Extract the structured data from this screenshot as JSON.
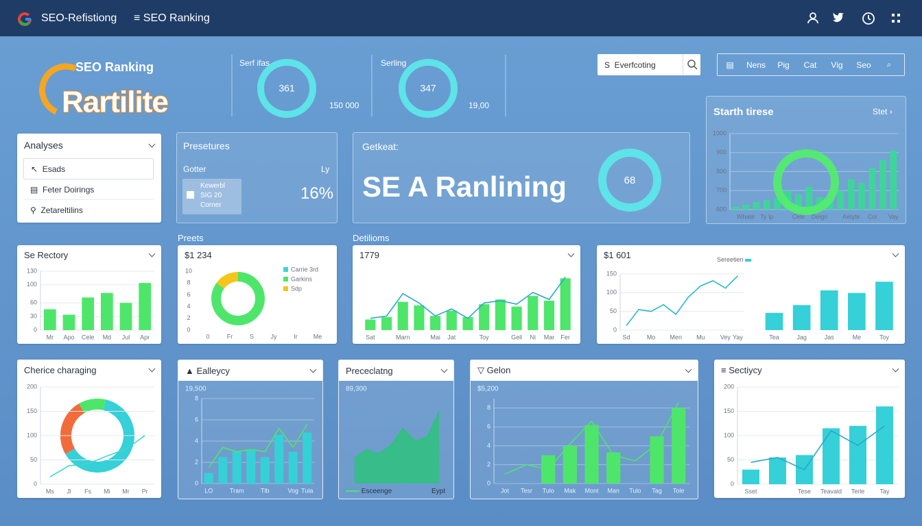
{
  "header": {
    "brand": "SEO-Refistiong",
    "nav": "SEO Ranking"
  },
  "logo": {
    "top": "SEO Ranking",
    "main": "Rartilite"
  },
  "gauges": [
    {
      "label": "Serf ifas",
      "value": 361,
      "side": "150 000"
    },
    {
      "label": "Serling",
      "value": 347,
      "side": "19,00"
    }
  ],
  "search": {
    "placeholder": "Everfcoting"
  },
  "toolbar": [
    "Nens",
    "Pig",
    "Cat",
    "Vig",
    "Seo"
  ],
  "sidebar": {
    "title": "Analyses",
    "items": [
      "Esads",
      "Feter Doirings",
      "Zetareltilins"
    ]
  },
  "presetures": {
    "title": "Presetures",
    "label": "Gotter",
    "right": "Ly",
    "box": [
      "Kewerbl",
      "SIG 20",
      "Corner"
    ],
    "value": "16%"
  },
  "hero": {
    "label": "Getkeat:",
    "title": "SE A Ranlining",
    "gauge": 68
  },
  "trend": {
    "title": "Starth tirese",
    "link": "Stet",
    "type": "bar",
    "ylim": [
      600,
      1000
    ],
    "yticks": [
      600,
      700,
      800,
      900,
      1000
    ],
    "categories": [
      null,
      "Whate",
      null,
      "Ty Ip",
      null,
      null,
      "Cele",
      null,
      "Deign",
      null,
      null,
      "Aetyte",
      null,
      "Col",
      null,
      "Vay"
    ],
    "series": [
      {
        "kind": "bar",
        "color": "#3fd59a",
        "values": [
          615,
          625,
          640,
          650,
          660,
          700,
          680,
          720,
          665,
          650,
          700,
          760,
          740,
          820,
          860,
          910
        ]
      }
    ]
  },
  "panels": [
    {
      "title": "Se Rectory",
      "type": "bar",
      "ylim": [
        0,
        130
      ],
      "yticks": [
        0,
        30,
        60,
        100,
        130
      ],
      "categories": [
        "Mr",
        "Apo",
        "Cele",
        "Md",
        "Jul",
        "Apr"
      ],
      "series": [
        {
          "kind": "bar",
          "color": "#4ee66a",
          "values": [
            46,
            34,
            72,
            82,
            60,
            104
          ]
        }
      ]
    },
    {
      "caption": "Preets",
      "title": "$1 234",
      "type": "donut",
      "labels": [
        "Carrie 3rd",
        "Garkins",
        "Sdp"
      ],
      "colors": [
        "#3ed6d0",
        "#4ee66a",
        "#f5c518"
      ],
      "values": [
        0,
        85,
        15
      ],
      "yticks": [
        0,
        2,
        4,
        6,
        8,
        10
      ],
      "categories": [
        "0",
        "Fr",
        "S",
        "Jy",
        "Ir",
        "Me"
      ]
    },
    {
      "caption": "Detilioms",
      "title": "1779",
      "type": "combo",
      "ylim": [
        0,
        100
      ],
      "categories": [
        "Sat",
        null,
        "Marn",
        null,
        "Mai",
        "Jat",
        null,
        "Toy",
        null,
        "Gell",
        "Ni",
        "Mar",
        "Fer"
      ],
      "series": [
        {
          "kind": "bar",
          "color": "#4ee66a",
          "values": [
            18,
            22,
            48,
            42,
            24,
            33,
            22,
            44,
            52,
            40,
            58,
            50,
            88
          ]
        },
        {
          "kind": "line",
          "color": "#2aa9c9",
          "values": [
            20,
            24,
            62,
            46,
            24,
            36,
            20,
            46,
            50,
            44,
            64,
            52,
            90
          ]
        }
      ]
    },
    {
      "title": "$1 601",
      "legend": "Sereetien",
      "charts": [
        {
          "type": "line",
          "ylim": [
            0,
            150
          ],
          "yticks": [
            0,
            50,
            100,
            150
          ],
          "categories": [
            "Sd",
            null,
            "Mo",
            null,
            "Men",
            null,
            "Mu",
            null,
            "Vey",
            "Yay"
          ],
          "series": [
            {
              "kind": "line",
              "color": "#25b8c8",
              "values": [
                12,
                55,
                50,
                68,
                42,
                88,
                118,
                132,
                112,
                145
              ]
            }
          ]
        },
        {
          "type": "bar",
          "ylim": [
            0,
            130
          ],
          "categories": [
            "Tea",
            "Jag",
            "Jas",
            "Me",
            "Toy"
          ],
          "series": [
            {
              "kind": "bar",
              "color": "#35d0d8",
              "values": [
                40,
                58,
                92,
                86,
                112
              ]
            }
          ]
        }
      ]
    },
    {
      "title": "Cherice charaging",
      "type": "combo",
      "ylim": [
        0,
        200
      ],
      "yticks": [
        0,
        50,
        100,
        150,
        200
      ],
      "categories": [
        "Ms",
        "Jl",
        "Fs",
        "Mi",
        "Mr",
        "Pr"
      ],
      "series": [
        {
          "kind": "line",
          "color": "#3ed6d0",
          "values": [
            15,
            38,
            42,
            58,
            72,
            100
          ]
        }
      ],
      "donut": {
        "values": [
          25,
          12,
          63
        ],
        "colors": [
          "#f26b3a",
          "#4ee66a",
          "#35d0d8"
        ]
      }
    },
    {
      "title": "Ealleycy",
      "value": "19,500",
      "type": "combo",
      "ylim": [
        0,
        8
      ],
      "yticks": [
        0,
        2,
        4,
        6,
        8
      ],
      "categories": [
        "LO",
        null,
        "Tram",
        null,
        "Tlb",
        null,
        "Vog",
        "Tula"
      ],
      "series": [
        {
          "kind": "bar",
          "color": "#35d0d8",
          "values": [
            1,
            2.5,
            3,
            3.2,
            2.5,
            4.6,
            3,
            4.8
          ]
        },
        {
          "kind": "line",
          "color": "#4ee66a",
          "values": [
            1.5,
            3.4,
            3,
            3.2,
            3,
            5.2,
            3.4,
            5.6
          ]
        }
      ]
    },
    {
      "title": "Prececlatng",
      "value": "89,300",
      "type": "area",
      "ylim": [
        0,
        10
      ],
      "legend": [
        "Esceenge",
        "Eypt"
      ],
      "series": [
        {
          "kind": "area",
          "color": "#2ec27e",
          "values": [
            3,
            4,
            3.5,
            4.5,
            6.5,
            5,
            5.5,
            8.5
          ]
        }
      ]
    },
    {
      "title": "Gelon",
      "value": "$5,200",
      "type": "combo",
      "ylim": [
        0,
        9
      ],
      "yticks": [
        0,
        2,
        4,
        6,
        8
      ],
      "categories": [
        "Jot",
        "Tesr",
        "Tulo",
        "Mak",
        "Mont",
        "Man",
        "Tulo",
        "Tag",
        "Tole"
      ],
      "series": [
        {
          "kind": "bar",
          "color": "#4ee66a",
          "values": [
            null,
            null,
            3,
            4,
            6.2,
            3.3,
            null,
            5,
            8
          ]
        },
        {
          "kind": "line",
          "color": "#4ee66a",
          "values": [
            1,
            2,
            1.5,
            4.2,
            6.6,
            3,
            2.4,
            4.2,
            8.6
          ]
        }
      ]
    },
    {
      "title": "Sectiycy",
      "type": "combo",
      "ylim": [
        0,
        200
      ],
      "yticks": [
        0,
        50,
        100,
        150,
        200
      ],
      "categories": [
        "Sset",
        null,
        "Tese",
        "Teavald",
        "Terle",
        "Tay"
      ],
      "series": [
        {
          "kind": "bar",
          "color": "#35d0d8",
          "values": [
            30,
            55,
            60,
            115,
            120,
            160
          ]
        },
        {
          "kind": "line",
          "color": "#2aa9c9",
          "values": [
            45,
            55,
            30,
            110,
            80,
            120
          ]
        }
      ]
    }
  ]
}
